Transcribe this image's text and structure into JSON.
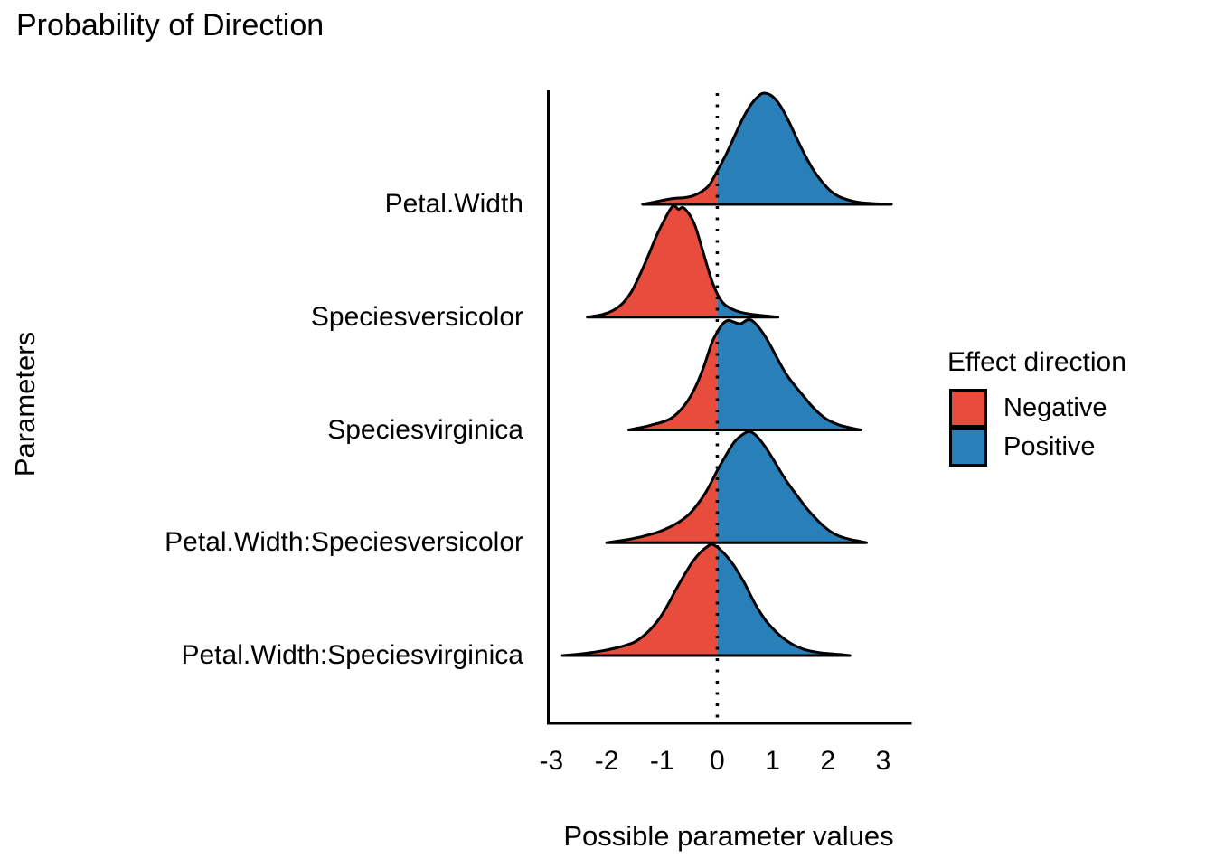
{
  "title": "Probability of Direction",
  "legend": {
    "title": "Effect direction",
    "position": "right",
    "items": [
      {
        "label": "Negative",
        "color": "#e74c3c"
      },
      {
        "label": "Positive",
        "color": "#2980b9"
      }
    ]
  },
  "chart_data": {
    "type": "area",
    "subtype": "ridgeline-density",
    "title": "Probability of Direction",
    "xlabel": "Possible parameter values",
    "ylabel": "Parameters",
    "xlim": [
      -3,
      3
    ],
    "x_ticks": [
      -3,
      -2,
      -1,
      0,
      1,
      2,
      3
    ],
    "grid": false,
    "zero_line": {
      "x": 0,
      "style": "dotted",
      "color": "#000000"
    },
    "split_at": 0,
    "colors": {
      "negative": "#e74c3c",
      "positive": "#2980b9",
      "outline": "#000000"
    },
    "legend_position": "right",
    "series": [
      {
        "name": "Petal.Width",
        "density": [
          [
            -1.35,
            0
          ],
          [
            -1.2,
            0.015
          ],
          [
            -1.05,
            0.03
          ],
          [
            -0.9,
            0.045
          ],
          [
            -0.75,
            0.055
          ],
          [
            -0.6,
            0.06
          ],
          [
            -0.45,
            0.075
          ],
          [
            -0.3,
            0.11
          ],
          [
            -0.15,
            0.17
          ],
          [
            0,
            0.3
          ],
          [
            0.15,
            0.44
          ],
          [
            0.3,
            0.6
          ],
          [
            0.45,
            0.76
          ],
          [
            0.6,
            0.89
          ],
          [
            0.75,
            0.975
          ],
          [
            0.85,
            1.0
          ],
          [
            1.0,
            0.97
          ],
          [
            1.15,
            0.88
          ],
          [
            1.3,
            0.74
          ],
          [
            1.45,
            0.58
          ],
          [
            1.6,
            0.43
          ],
          [
            1.75,
            0.3
          ],
          [
            1.9,
            0.2
          ],
          [
            2.05,
            0.12
          ],
          [
            2.2,
            0.07
          ],
          [
            2.4,
            0.035
          ],
          [
            2.6,
            0.015
          ],
          [
            2.9,
            0.005
          ],
          [
            3.15,
            0
          ]
        ]
      },
      {
        "name": "Speciesversicolor",
        "density": [
          [
            -2.35,
            0
          ],
          [
            -2.15,
            0.015
          ],
          [
            -2.0,
            0.035
          ],
          [
            -1.85,
            0.07
          ],
          [
            -1.7,
            0.13
          ],
          [
            -1.55,
            0.23
          ],
          [
            -1.4,
            0.38
          ],
          [
            -1.25,
            0.55
          ],
          [
            -1.1,
            0.73
          ],
          [
            -0.95,
            0.88
          ],
          [
            -0.85,
            0.97
          ],
          [
            -0.78,
            1.0
          ],
          [
            -0.7,
            0.97
          ],
          [
            -0.62,
            0.985
          ],
          [
            -0.5,
            0.92
          ],
          [
            -0.4,
            0.82
          ],
          [
            -0.3,
            0.66
          ],
          [
            -0.2,
            0.49
          ],
          [
            -0.1,
            0.33
          ],
          [
            0,
            0.21
          ],
          [
            0.1,
            0.13
          ],
          [
            0.2,
            0.09
          ],
          [
            0.35,
            0.055
          ],
          [
            0.5,
            0.035
          ],
          [
            0.7,
            0.02
          ],
          [
            0.9,
            0.01
          ],
          [
            1.1,
            0
          ]
        ]
      },
      {
        "name": "Speciesvirginica",
        "density": [
          [
            -1.6,
            0
          ],
          [
            -1.45,
            0.015
          ],
          [
            -1.3,
            0.03
          ],
          [
            -1.15,
            0.05
          ],
          [
            -1.0,
            0.07
          ],
          [
            -0.85,
            0.1
          ],
          [
            -0.7,
            0.16
          ],
          [
            -0.55,
            0.25
          ],
          [
            -0.4,
            0.38
          ],
          [
            -0.25,
            0.56
          ],
          [
            -0.1,
            0.78
          ],
          [
            0,
            0.88
          ],
          [
            0.1,
            0.955
          ],
          [
            0.2,
            0.985
          ],
          [
            0.3,
            0.97
          ],
          [
            0.42,
            0.955
          ],
          [
            0.55,
            0.99
          ],
          [
            0.65,
            0.975
          ],
          [
            0.8,
            0.89
          ],
          [
            0.95,
            0.77
          ],
          [
            1.1,
            0.63
          ],
          [
            1.25,
            0.5
          ],
          [
            1.4,
            0.4
          ],
          [
            1.55,
            0.31
          ],
          [
            1.7,
            0.22
          ],
          [
            1.85,
            0.145
          ],
          [
            2.0,
            0.09
          ],
          [
            2.2,
            0.045
          ],
          [
            2.4,
            0.02
          ],
          [
            2.6,
            0
          ]
        ]
      },
      {
        "name": "Petal.Width:Speciesversicolor",
        "density": [
          [
            -2.0,
            0
          ],
          [
            -1.8,
            0.015
          ],
          [
            -1.6,
            0.03
          ],
          [
            -1.4,
            0.05
          ],
          [
            -1.25,
            0.07
          ],
          [
            -1.1,
            0.09
          ],
          [
            -0.95,
            0.12
          ],
          [
            -0.8,
            0.155
          ],
          [
            -0.65,
            0.2
          ],
          [
            -0.5,
            0.26
          ],
          [
            -0.35,
            0.35
          ],
          [
            -0.2,
            0.46
          ],
          [
            -0.05,
            0.6
          ],
          [
            0,
            0.65
          ],
          [
            0.15,
            0.78
          ],
          [
            0.3,
            0.9
          ],
          [
            0.45,
            0.97
          ],
          [
            0.58,
            1.0
          ],
          [
            0.7,
            0.965
          ],
          [
            0.85,
            0.875
          ],
          [
            1.0,
            0.76
          ],
          [
            1.15,
            0.635
          ],
          [
            1.3,
            0.52
          ],
          [
            1.45,
            0.42
          ],
          [
            1.6,
            0.32
          ],
          [
            1.75,
            0.235
          ],
          [
            1.9,
            0.16
          ],
          [
            2.05,
            0.1
          ],
          [
            2.2,
            0.06
          ],
          [
            2.4,
            0.03
          ],
          [
            2.55,
            0.015
          ],
          [
            2.7,
            0
          ]
        ]
      },
      {
        "name": "Petal.Width:Speciesvirginica",
        "density": [
          [
            -2.8,
            0
          ],
          [
            -2.55,
            0.01
          ],
          [
            -2.3,
            0.025
          ],
          [
            -2.1,
            0.04
          ],
          [
            -1.9,
            0.06
          ],
          [
            -1.7,
            0.085
          ],
          [
            -1.5,
            0.12
          ],
          [
            -1.35,
            0.17
          ],
          [
            -1.2,
            0.24
          ],
          [
            -1.05,
            0.33
          ],
          [
            -0.9,
            0.45
          ],
          [
            -0.75,
            0.59
          ],
          [
            -0.6,
            0.72
          ],
          [
            -0.45,
            0.84
          ],
          [
            -0.3,
            0.93
          ],
          [
            -0.15,
            0.99
          ],
          [
            -0.1,
            1.0
          ],
          [
            0,
            0.975
          ],
          [
            0.1,
            0.93
          ],
          [
            0.2,
            0.875
          ],
          [
            0.3,
            0.81
          ],
          [
            0.4,
            0.73
          ],
          [
            0.5,
            0.645
          ],
          [
            0.6,
            0.545
          ],
          [
            0.7,
            0.45
          ],
          [
            0.8,
            0.37
          ],
          [
            0.9,
            0.3
          ],
          [
            1.0,
            0.245
          ],
          [
            1.1,
            0.195
          ],
          [
            1.25,
            0.135
          ],
          [
            1.4,
            0.09
          ],
          [
            1.6,
            0.05
          ],
          [
            1.8,
            0.03
          ],
          [
            2.0,
            0.018
          ],
          [
            2.2,
            0.01
          ],
          [
            2.4,
            0
          ]
        ]
      }
    ]
  }
}
